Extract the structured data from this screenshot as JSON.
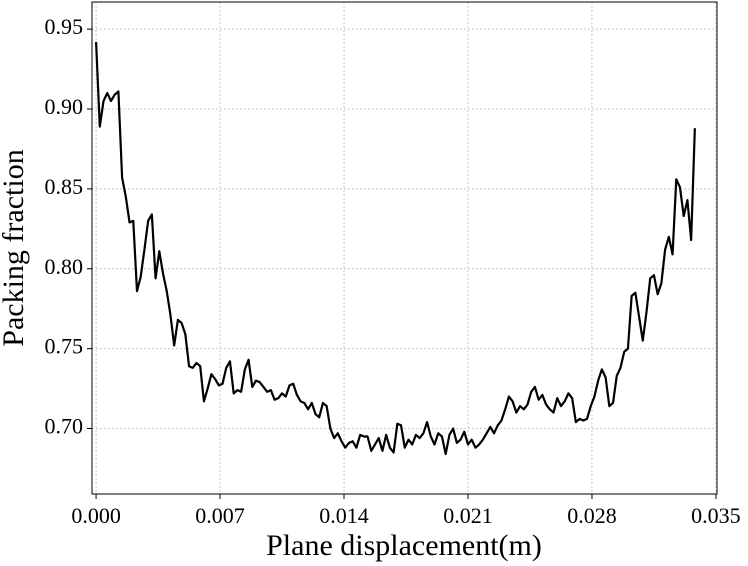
{
  "chart_data": {
    "type": "line",
    "x_label": "Plane displacement(m)",
    "y_label": "Packing fraction",
    "xlim": [
      -0.00023,
      0.03506
    ],
    "ylim": [
      0.659,
      0.967
    ],
    "xticks": [
      {
        "value": 0,
        "label": "0.000"
      },
      {
        "value": 0.007,
        "label": "0.007"
      },
      {
        "value": 0.014,
        "label": "0.014"
      },
      {
        "value": 0.021,
        "label": "0.021"
      },
      {
        "value": 0.028,
        "label": "0.028"
      },
      {
        "value": 0.035,
        "label": "0.035"
      }
    ],
    "yticks": [
      {
        "value": 0.7,
        "label": "0.70"
      },
      {
        "value": 0.75,
        "label": "0.75"
      },
      {
        "value": 0.8,
        "label": "0.80"
      },
      {
        "value": 0.85,
        "label": "0.85"
      },
      {
        "value": 0.9,
        "label": "0.90"
      },
      {
        "value": 0.95,
        "label": "0.95"
      }
    ],
    "grid": true,
    "x": [
      0,
      0.00021,
      0.00042,
      0.00063,
      0.00084,
      0.00105,
      0.00126,
      0.00147,
      0.00168,
      0.00189,
      0.0021,
      0.00231,
      0.00252,
      0.00273,
      0.00294,
      0.00315,
      0.00336,
      0.00357,
      0.00378,
      0.00399,
      0.0042,
      0.00441,
      0.00462,
      0.00483,
      0.00504,
      0.00525,
      0.00546,
      0.00567,
      0.00588,
      0.00609,
      0.0063,
      0.00651,
      0.00672,
      0.00693,
      0.00714,
      0.00735,
      0.00756,
      0.00777,
      0.00798,
      0.00819,
      0.0084,
      0.00861,
      0.00882,
      0.00903,
      0.00924,
      0.00945,
      0.00966,
      0.00987,
      0.01008,
      0.01029,
      0.0105,
      0.01071,
      0.01092,
      0.01113,
      0.01134,
      0.01155,
      0.01176,
      0.01197,
      0.01218,
      0.01239,
      0.0126,
      0.01281,
      0.01302,
      0.01323,
      0.01344,
      0.01365,
      0.01386,
      0.01407,
      0.01428,
      0.01449,
      0.0147,
      0.01491,
      0.01512,
      0.01533,
      0.01554,
      0.01575,
      0.01596,
      0.01617,
      0.01638,
      0.01659,
      0.0168,
      0.01701,
      0.01722,
      0.01743,
      0.01764,
      0.01785,
      0.01806,
      0.01827,
      0.01848,
      0.01869,
      0.0189,
      0.01911,
      0.01932,
      0.01953,
      0.01974,
      0.01995,
      0.02016,
      0.02037,
      0.02058,
      0.02079,
      0.021,
      0.02121,
      0.02142,
      0.02163,
      0.02184,
      0.02205,
      0.02226,
      0.02247,
      0.02268,
      0.02289,
      0.0231,
      0.02331,
      0.02352,
      0.02373,
      0.02394,
      0.02415,
      0.02436,
      0.02457,
      0.02478,
      0.02499,
      0.0252,
      0.02541,
      0.02562,
      0.02583,
      0.02604,
      0.02625,
      0.02646,
      0.02667,
      0.02688,
      0.02709,
      0.0273,
      0.02751,
      0.02772,
      0.02793,
      0.02814,
      0.02835,
      0.02856,
      0.02877,
      0.02898,
      0.02919,
      0.0294,
      0.02961,
      0.02982,
      0.03003,
      0.03024,
      0.03045,
      0.03066,
      0.03087,
      0.03108,
      0.03129,
      0.0315,
      0.03171,
      0.03192,
      0.03213,
      0.03234,
      0.03255,
      0.03276,
      0.03297,
      0.03318,
      0.03339,
      0.0336,
      0.03381
    ],
    "series": [
      {
        "color": "#000000",
        "values": [
          0.942,
          0.889,
          0.905,
          0.91,
          0.905,
          0.909,
          0.911,
          0.857,
          0.845,
          0.829,
          0.83,
          0.786,
          0.795,
          0.812,
          0.83,
          0.834,
          0.794,
          0.811,
          0.797,
          0.786,
          0.771,
          0.752,
          0.768,
          0.766,
          0.759,
          0.739,
          0.738,
          0.741,
          0.739,
          0.717,
          0.725,
          0.734,
          0.731,
          0.727,
          0.728,
          0.738,
          0.742,
          0.722,
          0.724,
          0.723,
          0.737,
          0.743,
          0.726,
          0.73,
          0.729,
          0.726,
          0.723,
          0.724,
          0.718,
          0.719,
          0.722,
          0.72,
          0.727,
          0.728,
          0.721,
          0.717,
          0.716,
          0.712,
          0.716,
          0.709,
          0.707,
          0.716,
          0.714,
          0.7,
          0.694,
          0.697,
          0.692,
          0.688,
          0.691,
          0.692,
          0.688,
          0.696,
          0.695,
          0.695,
          0.686,
          0.69,
          0.694,
          0.686,
          0.696,
          0.688,
          0.685,
          0.703,
          0.702,
          0.688,
          0.693,
          0.69,
          0.696,
          0.694,
          0.697,
          0.704,
          0.695,
          0.69,
          0.697,
          0.695,
          0.684,
          0.696,
          0.7,
          0.691,
          0.693,
          0.698,
          0.69,
          0.693,
          0.688,
          0.69,
          0.693,
          0.697,
          0.701,
          0.697,
          0.702,
          0.705,
          0.712,
          0.72,
          0.717,
          0.71,
          0.714,
          0.712,
          0.715,
          0.723,
          0.726,
          0.718,
          0.721,
          0.715,
          0.712,
          0.71,
          0.719,
          0.714,
          0.717,
          0.722,
          0.719,
          0.704,
          0.706,
          0.705,
          0.706,
          0.714,
          0.72,
          0.73,
          0.737,
          0.732,
          0.714,
          0.716,
          0.733,
          0.738,
          0.748,
          0.75,
          0.783,
          0.785,
          0.77,
          0.755,
          0.773,
          0.794,
          0.796,
          0.784,
          0.791,
          0.812,
          0.82,
          0.809,
          0.856,
          0.851,
          0.833,
          0.843,
          0.818,
          0.888
        ]
      }
    ]
  }
}
